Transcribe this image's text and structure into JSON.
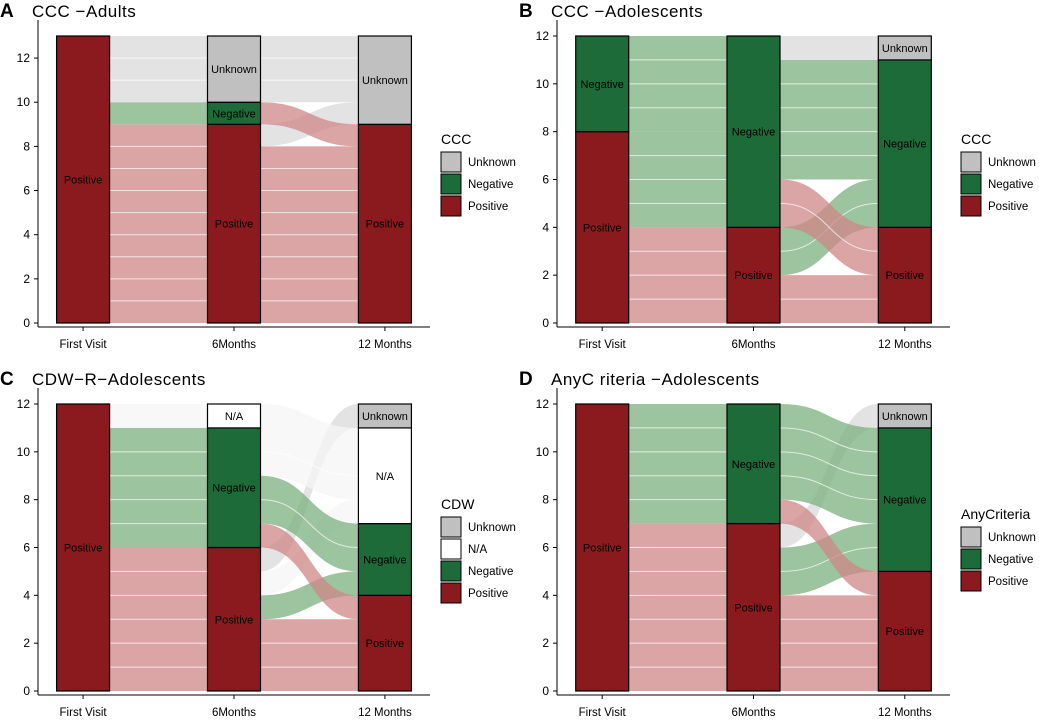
{
  "figure": {
    "colors": {
      "Unknown": "#c0c0c0",
      "N/A": "#ffffff",
      "Negative": "#1d6b38",
      "Positive": "#8b1a1e"
    },
    "flow_colors": {
      "Unknown": "#d9d9d9",
      "N/A": "#f5f5f5",
      "Negative": "#7bb07e",
      "Positive": "#cf8587"
    }
  },
  "chart_data": [
    {
      "panel": "A",
      "type": "alluvial",
      "title": "CCC −Adults",
      "x": [
        "First Visit",
        "6Months",
        "12 Months"
      ],
      "ylim": [
        0,
        13
      ],
      "yticks": [
        0,
        2,
        4,
        6,
        8,
        10,
        12
      ],
      "legend_title": "CCC",
      "legend": [
        "Unknown",
        "Negative",
        "Positive"
      ],
      "stacks": [
        [
          {
            "cat": "Positive",
            "value": 13
          }
        ],
        [
          {
            "cat": "Positive",
            "value": 9
          },
          {
            "cat": "Negative",
            "value": 1
          },
          {
            "cat": "Unknown",
            "value": 3
          }
        ],
        [
          {
            "cat": "Positive",
            "value": 9
          },
          {
            "cat": "Unknown",
            "value": 4
          }
        ]
      ],
      "flows": [
        [
          {
            "from": "Positive",
            "to": "Positive",
            "value": 9
          },
          {
            "from": "Positive",
            "to": "Negative",
            "value": 1
          },
          {
            "from": "Positive",
            "to": "Unknown",
            "value": 3
          }
        ],
        [
          {
            "from": "Positive",
            "to": "Positive",
            "value": 8
          },
          {
            "from": "Positive",
            "to": "Unknown",
            "value": 1
          },
          {
            "from": "Negative",
            "to": "Positive",
            "value": 1
          },
          {
            "from": "Unknown",
            "to": "Unknown",
            "value": 3
          }
        ]
      ]
    },
    {
      "panel": "B",
      "type": "alluvial",
      "title": "CCC −Adolescents",
      "x": [
        "First Visit",
        "6Months",
        "12 Months"
      ],
      "ylim": [
        0,
        12
      ],
      "yticks": [
        0,
        2,
        4,
        6,
        8,
        10,
        12
      ],
      "legend_title": "CCC",
      "legend": [
        "Unknown",
        "Negative",
        "Positive"
      ],
      "stacks": [
        [
          {
            "cat": "Positive",
            "value": 8
          },
          {
            "cat": "Negative",
            "value": 4
          }
        ],
        [
          {
            "cat": "Positive",
            "value": 4
          },
          {
            "cat": "Negative",
            "value": 8
          }
        ],
        [
          {
            "cat": "Positive",
            "value": 4
          },
          {
            "cat": "Negative",
            "value": 7
          },
          {
            "cat": "Unknown",
            "value": 1
          }
        ]
      ],
      "flows": [
        [
          {
            "from": "Positive",
            "to": "Positive",
            "value": 4
          },
          {
            "from": "Positive",
            "to": "Negative",
            "value": 4
          },
          {
            "from": "Negative",
            "to": "Negative",
            "value": 4
          }
        ],
        [
          {
            "from": "Positive",
            "to": "Positive",
            "value": 2
          },
          {
            "from": "Positive",
            "to": "Negative",
            "value": 2
          },
          {
            "from": "Negative",
            "to": "Positive",
            "value": 2
          },
          {
            "from": "Negative",
            "to": "Negative",
            "value": 5
          },
          {
            "from": "Negative",
            "to": "Unknown",
            "value": 1
          }
        ]
      ]
    },
    {
      "panel": "C",
      "type": "alluvial",
      "title": "CDW−R−Adolescents",
      "x": [
        "First Visit",
        "6Months",
        "12 Months"
      ],
      "ylim": [
        0,
        12
      ],
      "yticks": [
        0,
        2,
        4,
        6,
        8,
        10,
        12
      ],
      "legend_title": "CDW",
      "legend": [
        "Unknown",
        "N/A",
        "Negative",
        "Positive"
      ],
      "stacks": [
        [
          {
            "cat": "Positive",
            "value": 12
          }
        ],
        [
          {
            "cat": "Positive",
            "value": 6
          },
          {
            "cat": "Negative",
            "value": 5
          },
          {
            "cat": "N/A",
            "value": 1
          }
        ],
        [
          {
            "cat": "Positive",
            "value": 4
          },
          {
            "cat": "Negative",
            "value": 3
          },
          {
            "cat": "N/A",
            "value": 4
          },
          {
            "cat": "Unknown",
            "value": 1
          }
        ]
      ],
      "flows": [
        [
          {
            "from": "Positive",
            "to": "Positive",
            "value": 6
          },
          {
            "from": "Positive",
            "to": "Negative",
            "value": 5
          },
          {
            "from": "Positive",
            "to": "N/A",
            "value": 1
          }
        ],
        [
          {
            "from": "Positive",
            "to": "Positive",
            "value": 3
          },
          {
            "from": "Positive",
            "to": "Negative",
            "value": 1
          },
          {
            "from": "Positive",
            "to": "N/A",
            "value": 1
          },
          {
            "from": "Positive",
            "to": "Unknown",
            "value": 1
          },
          {
            "from": "Negative",
            "to": "Positive",
            "value": 1
          },
          {
            "from": "Negative",
            "to": "Negative",
            "value": 2
          },
          {
            "from": "Negative",
            "to": "N/A",
            "value": 2
          },
          {
            "from": "N/A",
            "to": "N/A",
            "value": 1
          }
        ]
      ]
    },
    {
      "panel": "D",
      "type": "alluvial",
      "title": "AnyC riteria −Adolescents",
      "x": [
        "First Visit",
        "6Months",
        "12 Months"
      ],
      "ylim": [
        0,
        12
      ],
      "yticks": [
        0,
        2,
        4,
        6,
        8,
        10,
        12
      ],
      "legend_title": "AnyCriteria",
      "legend": [
        "Unknown",
        "Negative",
        "Positive"
      ],
      "stacks": [
        [
          {
            "cat": "Positive",
            "value": 12
          }
        ],
        [
          {
            "cat": "Positive",
            "value": 7
          },
          {
            "cat": "Negative",
            "value": 5
          }
        ],
        [
          {
            "cat": "Positive",
            "value": 5
          },
          {
            "cat": "Negative",
            "value": 6
          },
          {
            "cat": "Unknown",
            "value": 1
          }
        ]
      ],
      "flows": [
        [
          {
            "from": "Positive",
            "to": "Positive",
            "value": 7
          },
          {
            "from": "Positive",
            "to": "Negative",
            "value": 5
          }
        ],
        [
          {
            "from": "Positive",
            "to": "Positive",
            "value": 4
          },
          {
            "from": "Positive",
            "to": "Negative",
            "value": 2
          },
          {
            "from": "Positive",
            "to": "Unknown",
            "value": 1
          },
          {
            "from": "Negative",
            "to": "Positive",
            "value": 1
          },
          {
            "from": "Negative",
            "to": "Negative",
            "value": 4
          }
        ]
      ]
    }
  ]
}
